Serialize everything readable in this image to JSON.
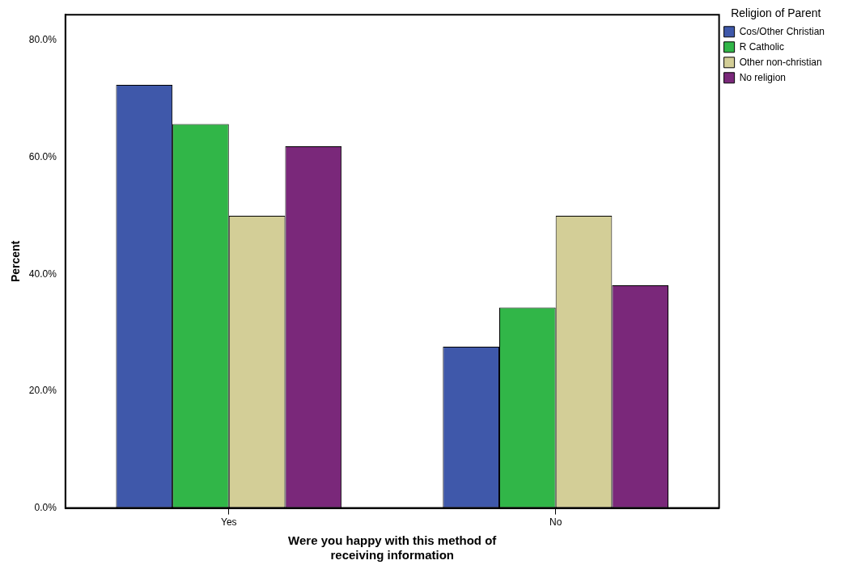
{
  "chart_data": {
    "type": "bar",
    "xlabel": "Were you happy with this method of receiving information",
    "ylabel": "Percent",
    "legend_title": "Religion of Parent",
    "categories": [
      "Yes",
      "No"
    ],
    "series": [
      {
        "name": "Cos/Other Christian",
        "color": "#3f58aa",
        "values": [
          72.4,
          27.6
        ]
      },
      {
        "name": "R Catholic",
        "color": "#31b648",
        "values": [
          65.7,
          34.3
        ]
      },
      {
        "name": "Other non-christian",
        "color": "#d3ce97",
        "values": [
          50.0,
          50.0
        ]
      },
      {
        "name": "No religion",
        "color": "#7a287a",
        "values": [
          61.9,
          38.1
        ]
      }
    ],
    "ylim": [
      0,
      84.4
    ],
    "yticks": [
      {
        "value": 0,
        "label": "0.0%"
      },
      {
        "value": 20,
        "label": "20.0%"
      },
      {
        "value": 40,
        "label": "40.0%"
      },
      {
        "value": 60,
        "label": "60.0%"
      },
      {
        "value": 80,
        "label": "80.0%"
      }
    ],
    "grid": false,
    "legend": "top right"
  }
}
